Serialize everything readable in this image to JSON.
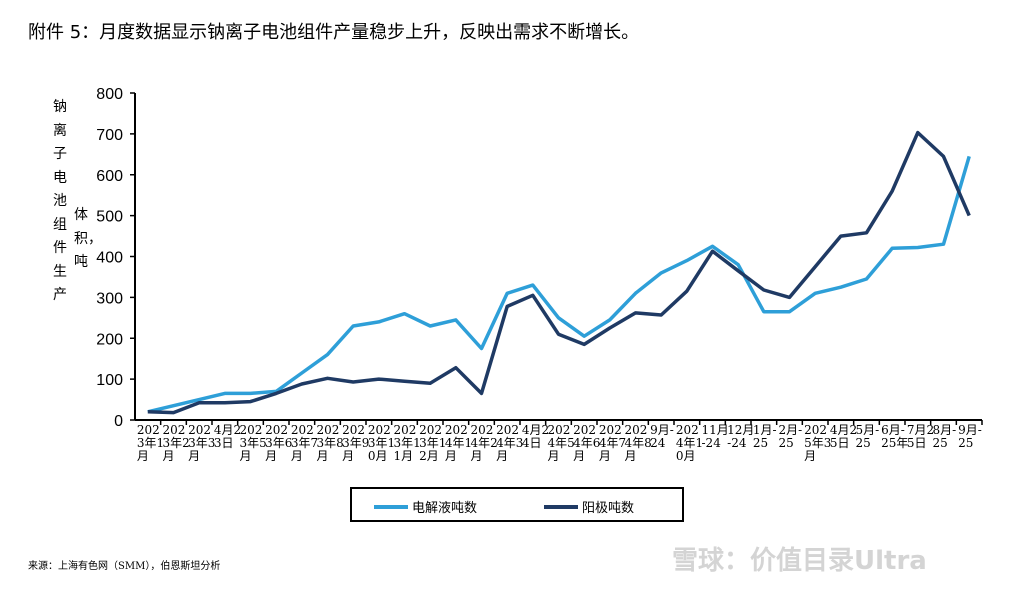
{
  "title": "附件 5：月度数据显示钠离子电池组件产量稳步上升，反映出需求不断增长。",
  "source": "来源：上海有色网（SMM），伯恩斯坦分析",
  "watermark": "雪球：价值目录Ultra",
  "chart_data": {
    "type": "line",
    "ylabel": "钠离子电池组件生产体积，吨",
    "ylabel_col1": "钠离子电池组件生产",
    "ylabel_col2": "体积，吨",
    "ylim": [
      0,
      800
    ],
    "yticks": [
      0,
      100,
      200,
      300,
      400,
      500,
      600,
      700,
      800
    ],
    "grid": false,
    "legend": "bottom",
    "categories": [
      "2023年1月",
      "2023年2月",
      "2023年3月",
      "4月23日",
      "2023年5月",
      "2023年6月",
      "2023年7月",
      "2023年8月",
      "2023年9月",
      "2023年10月",
      "2023年11月",
      "2023年12月",
      "2024年1月",
      "2024年2月",
      "2024年3月",
      "4月24日",
      "2024年5月",
      "2024年6月",
      "2024年7月",
      "2024年8月",
      "9月-24",
      "2024年10月",
      "11月-24",
      "12月-24",
      "1月-25",
      "2月-25",
      "2025年3月",
      "4月25日",
      "5月-25",
      "6月-25年",
      "7月25日",
      "8月-25",
      "9月-25"
    ],
    "series": [
      {
        "name": "电解液吨数",
        "color": "#2e9fd8",
        "values": [
          20,
          35,
          50,
          65,
          65,
          70,
          115,
          160,
          230,
          240,
          260,
          230,
          245,
          175,
          310,
          330,
          250,
          205,
          245,
          310,
          360,
          390,
          425,
          380,
          265,
          265,
          310,
          325,
          345,
          420,
          422,
          430,
          645
        ]
      },
      {
        "name": "阳极吨数",
        "color": "#1f3a64",
        "values": [
          20,
          18,
          42,
          42,
          45,
          65,
          88,
          102,
          93,
          100,
          95,
          90,
          128,
          65,
          278,
          305,
          210,
          185,
          225,
          262,
          257,
          315,
          413,
          365,
          318,
          300,
          375,
          450,
          458,
          560,
          703,
          645,
          500
        ]
      }
    ]
  }
}
